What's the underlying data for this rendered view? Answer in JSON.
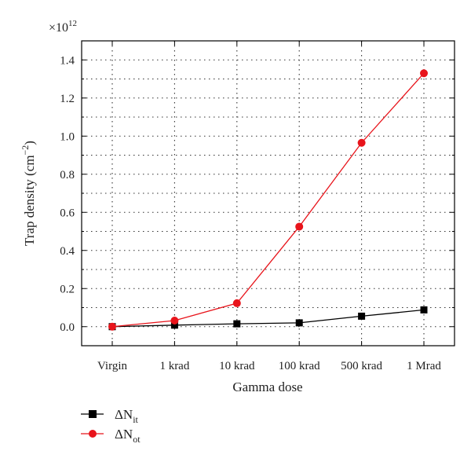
{
  "chart_data": {
    "type": "line",
    "categories": [
      "Virgin",
      "1 krad",
      "10 krad",
      "100 krad",
      "500 krad",
      "1 Mrad"
    ],
    "xlabel": "Gamma dose",
    "ylabel": "Trap density (cm",
    "ylabel_unit_exponent": "−2",
    "ylabel_close": ")",
    "y_multiplier_base": "×10",
    "y_multiplier_exponent": "12",
    "ylim": [
      -0.1,
      1.5
    ],
    "yticks": [
      0.0,
      0.2,
      0.4,
      0.6,
      0.8,
      1.0,
      1.2,
      1.4
    ],
    "ytick_labels": [
      "0.0",
      "0.2",
      "0.4",
      "0.6",
      "0.8",
      "1.0",
      "1.2",
      "1.4"
    ],
    "grid": true,
    "legend_position": "bottom-left",
    "series": [
      {
        "name": "ΔN",
        "name_subscript": "it",
        "color": "#000000",
        "marker": "square",
        "values": [
          0.0,
          0.008,
          0.015,
          0.02,
          0.055,
          0.088
        ]
      },
      {
        "name": "ΔN",
        "name_subscript": "ot",
        "color": "#e8141b",
        "marker": "circle",
        "values": [
          0.0,
          0.032,
          0.123,
          0.525,
          0.965,
          1.33
        ]
      }
    ]
  }
}
